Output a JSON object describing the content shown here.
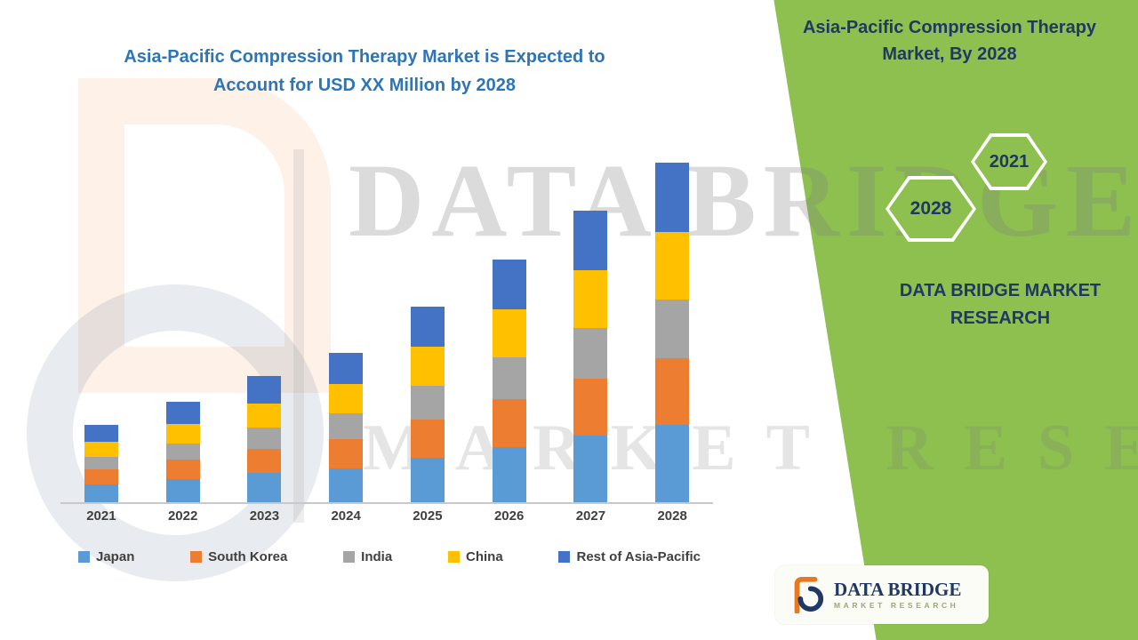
{
  "header": {
    "title_line1": "Asia-Pacific Compression Therapy Market is Expected to",
    "title_line2": "Account for USD XX Million by 2028"
  },
  "panel": {
    "title_line1": "Asia-Pacific Compression Therapy",
    "title_line2": "Market, By 2028",
    "hexagon_left_year": "2028",
    "hexagon_right_year": "2021",
    "brand_line1": "DATA BRIDGE MARKET",
    "brand_line2": "RESEARCH"
  },
  "logo": {
    "name": "DATA BRIDGE",
    "tagline": "MARKET RESEARCH"
  },
  "watermark": {
    "line1": "DATA BRIDGE",
    "line2": "MARKET RESEARCH"
  },
  "colors": {
    "panel_green": "#8DC04F",
    "title_blue": "#2E75B6",
    "navy": "#1F3864",
    "axis_text": "#404040"
  },
  "chart_data": {
    "type": "bar",
    "stacked": true,
    "title": "Asia-Pacific Compression Therapy Market is Expected to Account for USD XX Million by 2028",
    "categories": [
      "2021",
      "2022",
      "2023",
      "2024",
      "2025",
      "2026",
      "2027",
      "2028"
    ],
    "series": [
      {
        "name": "Japan",
        "color": "#5B9BD5",
        "values": [
          20,
          26,
          33,
          38,
          50,
          62,
          75,
          87
        ]
      },
      {
        "name": "South Korea",
        "color": "#ED7D31",
        "values": [
          17,
          22,
          27,
          33,
          43,
          54,
          64,
          75
        ]
      },
      {
        "name": "India",
        "color": "#A5A5A5",
        "values": [
          14,
          18,
          24,
          29,
          38,
          47,
          57,
          66
        ]
      },
      {
        "name": "China",
        "color": "#FFC000",
        "values": [
          17,
          22,
          27,
          33,
          44,
          54,
          65,
          76
        ]
      },
      {
        "name": "Rest of Asia-Pacific",
        "color": "#4472C4",
        "values": [
          19,
          25,
          31,
          35,
          45,
          56,
          67,
          78
        ]
      }
    ],
    "xlabel": "",
    "ylabel": "",
    "y_axis_visible": false,
    "value_units": "relative units estimated from bar heights (no y-axis labels shown)",
    "legend_position": "bottom",
    "grid": false
  }
}
